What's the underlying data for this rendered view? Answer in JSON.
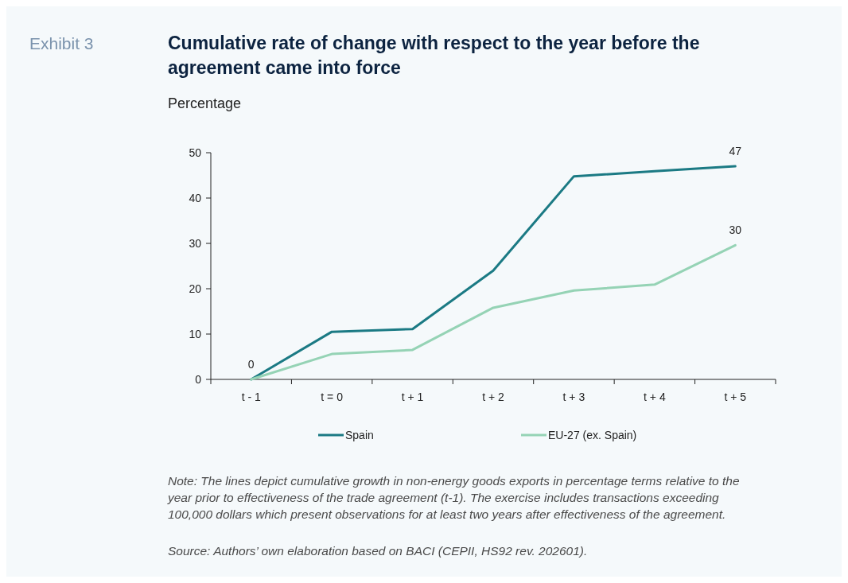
{
  "chart_data": {
    "type": "line",
    "title": "Cumulative rate of change with respect to the year before the agreement came into force",
    "ylabel": "Percentage",
    "annotations": [
      "Exhibit 3",
      "Note: The lines depict cumulative growth in non-energy goods exports in percentage terms relative to the year prior to effectiveness of the trade agreement (t-1). The exercise includes transactions exceeding 100,000 dollars which present observations for at least two years after effectiveness of the agreement.",
      "Source: Authors’ own elaboration based on BACI (CEPII, HS92 rev. 202601)."
    ],
    "categories": [
      "t - 1",
      "t = 0",
      "t + 1",
      "t + 2",
      "t + 3",
      "t + 4",
      "t + 5"
    ],
    "series": [
      {
        "name": "Spain",
        "color": "#1b7a84",
        "values": [
          0,
          10.5,
          11.1,
          24.0,
          44.8,
          45.9,
          47
        ],
        "value_labels": [
          "0",
          null,
          null,
          null,
          null,
          null,
          "47"
        ]
      },
      {
        "name": "EU-27 (ex. Spain)",
        "color": "#95d3b5",
        "values": [
          0,
          5.6,
          6.5,
          15.8,
          19.6,
          20.9,
          29.6
        ],
        "value_labels": [
          null,
          null,
          null,
          null,
          null,
          null,
          "30"
        ]
      }
    ],
    "ylim": [
      0,
      50
    ],
    "yticks": [
      0,
      10,
      20,
      30,
      40,
      50
    ],
    "grid": false,
    "legend": "bottom",
    "line_style": "solid",
    "marker": "none"
  }
}
